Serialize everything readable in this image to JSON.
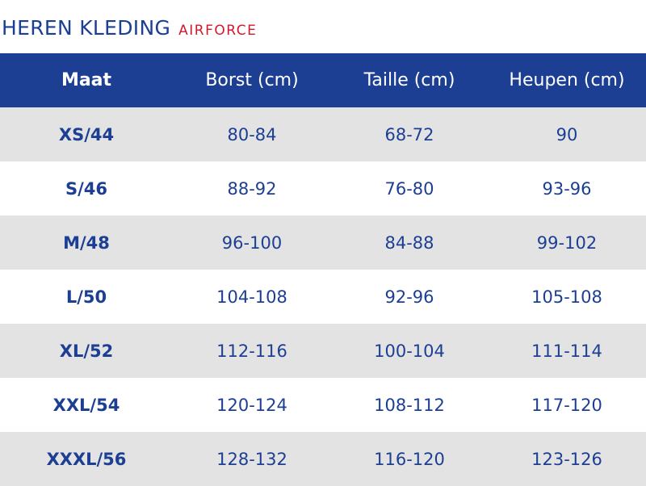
{
  "title": {
    "main": "HEREN KLEDING",
    "brand": "AIRFORCE"
  },
  "table": {
    "headers": [
      "Maat",
      "Borst (cm)",
      "Taille (cm)",
      "Heupen (cm)"
    ],
    "rows": [
      [
        "XS/44",
        "80-84",
        "68-72",
        "90"
      ],
      [
        "S/46",
        "88-92",
        "76-80",
        "93-96"
      ],
      [
        "M/48",
        "96-100",
        "84-88",
        "99-102"
      ],
      [
        "L/50",
        "104-108",
        "92-96",
        "105-108"
      ],
      [
        "XL/52",
        "112-116",
        "100-104",
        "111-114"
      ],
      [
        "XXL/54",
        "120-124",
        "108-112",
        "117-120"
      ],
      [
        "XXXL/56",
        "128-132",
        "116-120",
        "123-126"
      ]
    ]
  },
  "colors": {
    "primary": "#1c3f94",
    "accent": "#d0192d",
    "stripe": "#e3e3e3"
  }
}
